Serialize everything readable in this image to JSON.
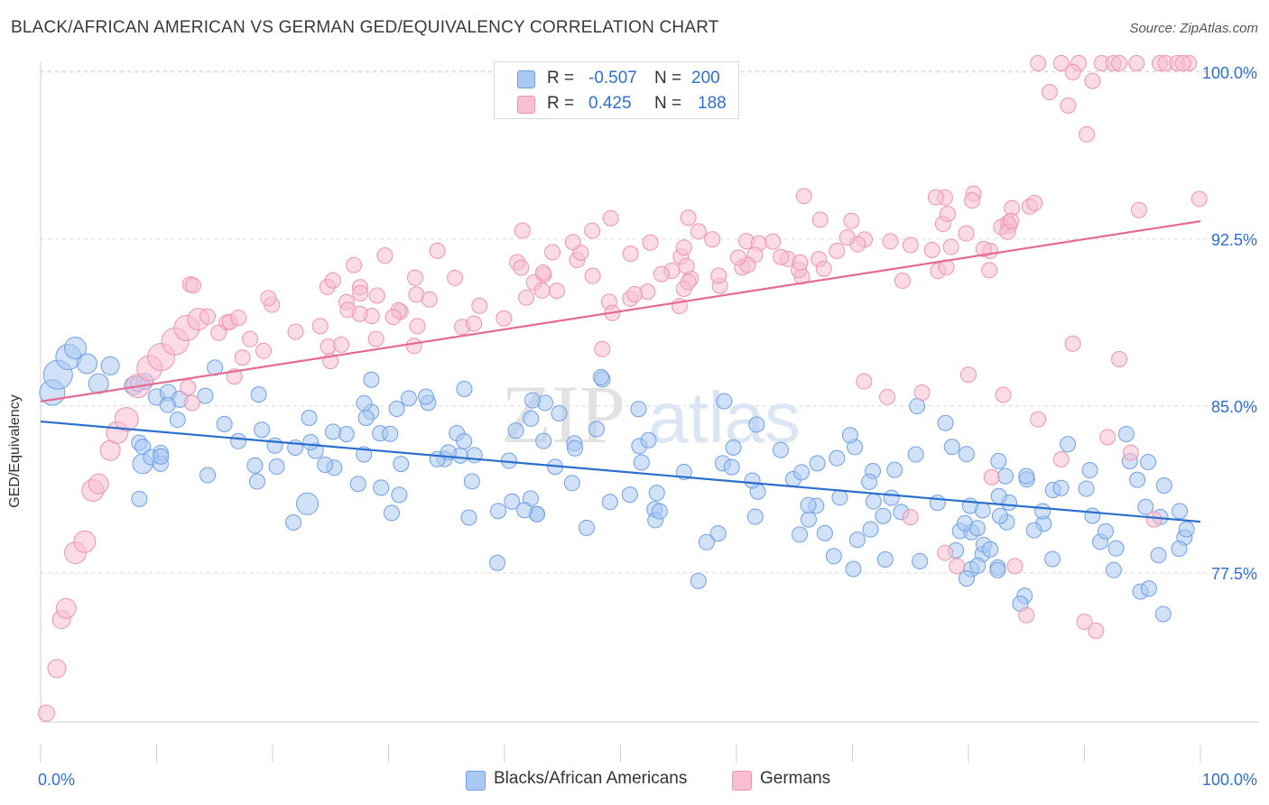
{
  "chart_data": {
    "type": "scatter",
    "title": "BLACK/AFRICAN AMERICAN VS GERMAN GED/EQUIVALENCY CORRELATION CHART",
    "source": "Source: ZipAtlas.com",
    "ylabel": "GED/Equivalency",
    "xlabel": "",
    "xlim": [
      0,
      100
    ],
    "ylim": [
      70.8,
      100.4
    ],
    "x_tick_labels": [
      "0.0%",
      "100.0%"
    ],
    "y_ticks": [
      {
        "value": 100.0,
        "label": "100.0%"
      },
      {
        "value": 92.5,
        "label": "92.5%"
      },
      {
        "value": 85.0,
        "label": "85.0%"
      },
      {
        "value": 77.5,
        "label": "77.5%"
      }
    ],
    "watermark": {
      "left": "ZIP",
      "right": "atlas"
    },
    "legend": {
      "r_label": "R =",
      "n_label": "N ="
    },
    "series": [
      {
        "name": "Blacks/African Americans",
        "color": "#6ea0e6",
        "fill": "#a9c8f2",
        "line_color": "#2b6fce",
        "r": "-0.507",
        "n": "200",
        "trend": {
          "x": [
            0,
            100
          ],
          "y": [
            84.3,
            79.8
          ]
        }
      },
      {
        "name": "Germans",
        "color": "#ef93af",
        "fill": "#f8bfd0",
        "line_color": "#e56b93",
        "r": "0.425",
        "n": "188",
        "trend": {
          "x": [
            0,
            100
          ],
          "y": [
            85.2,
            93.3
          ]
        }
      }
    ]
  }
}
